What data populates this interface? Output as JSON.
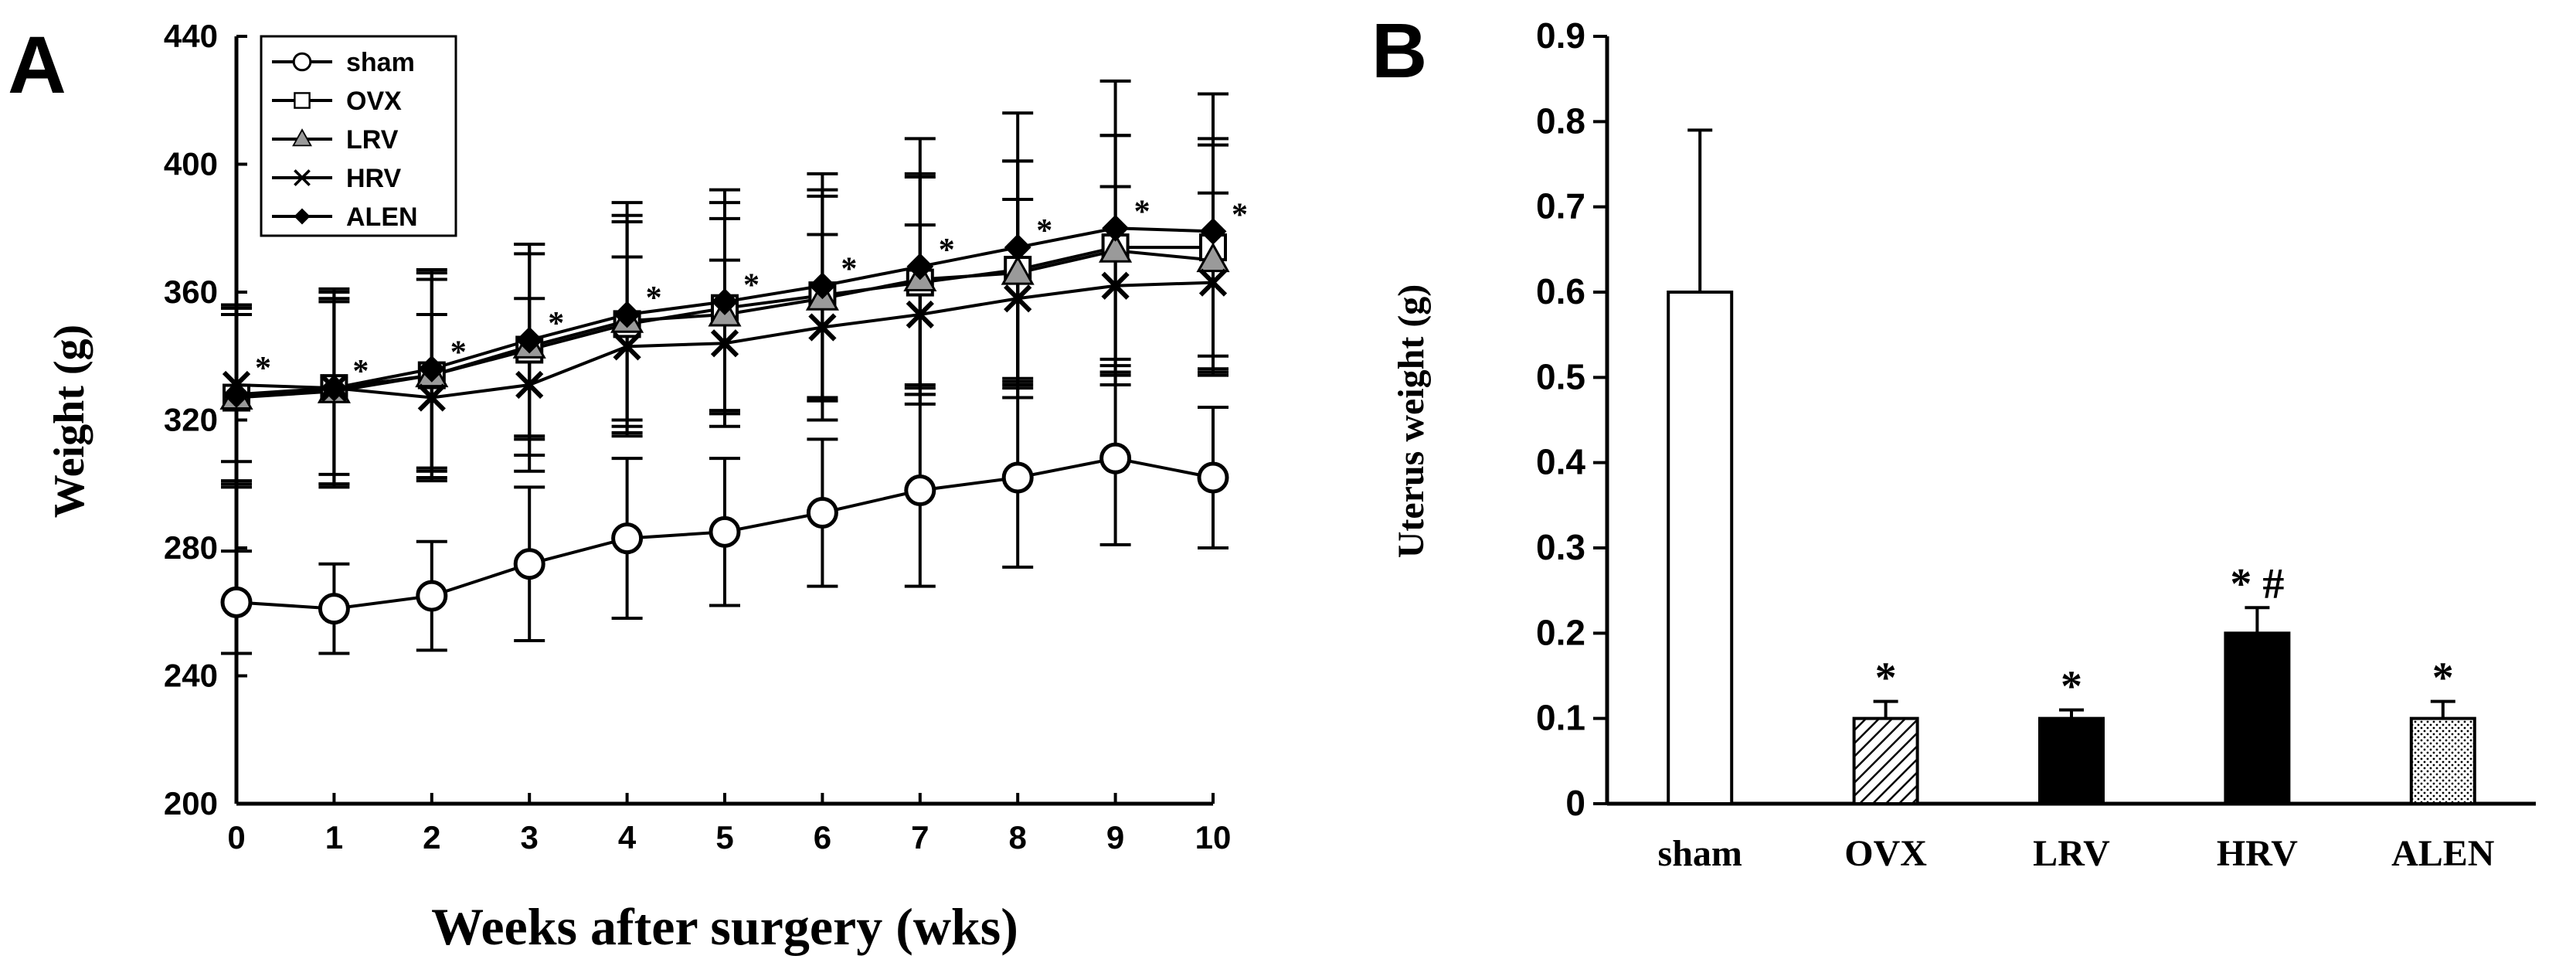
{
  "chart_data": [
    {
      "panel_label": "A",
      "type": "line",
      "xlabel": "Weeks after surgery (wks)",
      "ylabel": "Weight (g)",
      "xlim": [
        0,
        10
      ],
      "ylim": [
        200,
        440
      ],
      "x_ticks": [
        "0",
        "1",
        "2",
        "3",
        "4",
        "5",
        "6",
        "7",
        "8",
        "9",
        "10"
      ],
      "y_ticks": [
        "200",
        "240",
        "280",
        "320",
        "360",
        "400",
        "440"
      ],
      "grid": false,
      "legend_position": "top-left",
      "x": [
        0,
        1,
        2,
        3,
        4,
        5,
        6,
        7,
        8,
        9,
        10
      ],
      "significance_marker": "*",
      "series": [
        {
          "name": "sham",
          "marker": "open-circle",
          "color": "#000000",
          "values": [
            263,
            261,
            265,
            275,
            283,
            285,
            291,
            298,
            302,
            308,
            302
          ],
          "errors": [
            16,
            14,
            17,
            24,
            25,
            23,
            23,
            30,
            28,
            27,
            22
          ]
        },
        {
          "name": "OVX",
          "marker": "open-square",
          "color": "#000000",
          "values": [
            327,
            330,
            334,
            342,
            350,
            355,
            359,
            363,
            367,
            374,
            374
          ],
          "errors": [
            28,
            31,
            32,
            33,
            34,
            33,
            33,
            33,
            34,
            35,
            34
          ]
        },
        {
          "name": "LRV",
          "marker": "gray-triangle",
          "color": "#9a9a9a",
          "values": [
            327,
            329,
            334,
            343,
            351,
            353,
            358,
            364,
            366,
            373,
            370
          ],
          "errors": [
            26,
            29,
            30,
            29,
            31,
            30,
            32,
            33,
            35,
            36,
            36
          ]
        },
        {
          "name": "HRV",
          "marker": "x-cross",
          "color": "#000000",
          "values": [
            331,
            330,
            327,
            331,
            343,
            344,
            349,
            353,
            358,
            362,
            363
          ],
          "errors": [
            24,
            27,
            26,
            27,
            28,
            26,
            29,
            28,
            31,
            31,
            28
          ]
        },
        {
          "name": "ALEN",
          "marker": "filled-diamond",
          "color": "#000000",
          "values": [
            328,
            330,
            336,
            345,
            353,
            357,
            362,
            368,
            374,
            380,
            379
          ],
          "errors": [
            28,
            30,
            31,
            30,
            35,
            35,
            35,
            40,
            42,
            46,
            43
          ]
        }
      ]
    },
    {
      "panel_label": "B",
      "type": "bar",
      "categories": [
        "sham",
        "OVX",
        "LRV",
        "HRV",
        "ALEN"
      ],
      "values": [
        0.6,
        0.1,
        0.1,
        0.2,
        0.1
      ],
      "errors": [
        0.19,
        0.02,
        0.01,
        0.03,
        0.02
      ],
      "annotations": [
        "",
        "*",
        "*",
        "* #",
        "*"
      ],
      "fills": [
        "white",
        "hatched",
        "black",
        "black",
        "dotted"
      ],
      "xlabel": "",
      "ylabel": "Uterus weight (g)",
      "ylim": [
        0,
        0.9
      ],
      "y_ticks": [
        "0",
        "0.1",
        "0.2",
        "0.3",
        "0.4",
        "0.5",
        "0.6",
        "0.7",
        "0.8",
        "0.9"
      ],
      "grid": false
    }
  ]
}
